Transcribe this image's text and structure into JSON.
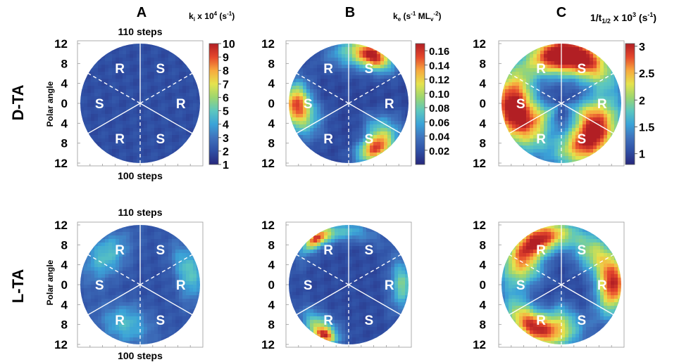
{
  "chart_data": {
    "type": "heatmap",
    "panel_labels": {
      "A": "A",
      "B": "B",
      "C": "C"
    },
    "row_labels": [
      "D-TA",
      "L-TA"
    ],
    "ylabel": "Polar angle",
    "y_tick_labels": [
      "12",
      "8",
      "4",
      "0",
      "4",
      "8",
      "12"
    ],
    "step_labels": {
      "top": "110 steps",
      "bottom": "100 steps"
    },
    "sector_labels": [
      "R",
      "S",
      "R",
      "S",
      "R",
      "S"
    ],
    "colorbars": [
      {
        "label_main": "k",
        "label_sub": "i",
        "label_rest": " x 10",
        "label_sup": "4",
        "label_unit": " (s",
        "label_unit_sup": "-1",
        "label_end": ")",
        "range": [
          1,
          10
        ],
        "ticks": [
          "10",
          "9",
          "8",
          "7",
          "6",
          "5",
          "4",
          "3",
          "2",
          "1"
        ]
      },
      {
        "label_main": "k",
        "label_sub": "e",
        "label_rest": " (s",
        "label_sup": "-1",
        "label_unit": " ML",
        "label_unit_sub": "v",
        "label_unit_sup": "-2",
        "label_end": ")",
        "range": [
          0.0,
          0.17
        ],
        "ticks": [
          "0.16",
          "0.14",
          "0.12",
          "0.10",
          "0.08",
          "0.06",
          "0.04",
          "0.02"
        ]
      },
      {
        "label_main": "1/t",
        "label_sub": "1/2",
        "label_rest": " x 10",
        "label_sup": "3",
        "label_unit": " (s",
        "label_unit_sup": "-1",
        "label_end": ")",
        "range": [
          0.8,
          3.05
        ],
        "ticks": [
          "3",
          "2.5",
          "2",
          "1.5",
          "1"
        ]
      }
    ],
    "colormap": [
      "#27287c",
      "#2f4fa4",
      "#3f72bd",
      "#3ba3d8",
      "#5cc7bf",
      "#9cd670",
      "#e5e34d",
      "#f7a93e",
      "#e5472c",
      "#b21f24"
    ],
    "maps": [
      {
        "row": "D-TA",
        "column": "A",
        "background_level": 0.11,
        "hotspots": []
      },
      {
        "row": "D-TA",
        "column": "B",
        "background_level": 0.09,
        "hotspots": [
          {
            "angle_deg": 62,
            "radius": 0.9,
            "level": 0.86,
            "spread_deg": 14,
            "spread_r": 0.14
          },
          {
            "angle_deg": 85,
            "radius": 0.85,
            "level": 0.42,
            "spread_deg": 22,
            "spread_r": 0.2
          },
          {
            "angle_deg": 180,
            "radius": 0.88,
            "level": 0.78,
            "spread_deg": 16,
            "spread_r": 0.16
          },
          {
            "angle_deg": 200,
            "radius": 0.75,
            "level": 0.38,
            "spread_deg": 18,
            "spread_r": 0.22
          },
          {
            "angle_deg": -60,
            "radius": 0.88,
            "level": 0.82,
            "spread_deg": 14,
            "spread_r": 0.14
          },
          {
            "angle_deg": -40,
            "radius": 0.7,
            "level": 0.42,
            "spread_deg": 16,
            "spread_r": 0.22
          }
        ]
      },
      {
        "row": "D-TA",
        "column": "C",
        "background_level": 0.12,
        "hotspots": [
          {
            "angle_deg": 65,
            "radius": 0.82,
            "level": 0.96,
            "spread_deg": 28,
            "spread_r": 0.22
          },
          {
            "angle_deg": 100,
            "radius": 0.8,
            "level": 0.72,
            "spread_deg": 22,
            "spread_r": 0.22
          },
          {
            "angle_deg": 180,
            "radius": 0.82,
            "level": 0.96,
            "spread_deg": 28,
            "spread_r": 0.24
          },
          {
            "angle_deg": 215,
            "radius": 0.55,
            "level": 0.62,
            "spread_deg": 24,
            "spread_r": 0.3
          },
          {
            "angle_deg": -55,
            "radius": 0.78,
            "level": 0.96,
            "spread_deg": 26,
            "spread_r": 0.24
          },
          {
            "angle_deg": -20,
            "radius": 0.55,
            "level": 0.62,
            "spread_deg": 22,
            "spread_r": 0.26
          }
        ]
      },
      {
        "row": "L-TA",
        "column": "A",
        "background_level": 0.12,
        "hotspots": [
          {
            "angle_deg": 140,
            "radius": 0.75,
            "level": 0.42,
            "spread_deg": 24,
            "spread_r": 0.22
          },
          {
            "angle_deg": 15,
            "radius": 0.85,
            "level": 0.45,
            "spread_deg": 22,
            "spread_r": 0.16
          },
          {
            "angle_deg": -110,
            "radius": 0.7,
            "level": 0.4,
            "spread_deg": 24,
            "spread_r": 0.24
          }
        ]
      },
      {
        "row": "L-TA",
        "column": "B",
        "background_level": 0.1,
        "hotspots": [
          {
            "angle_deg": 105,
            "radius": 0.9,
            "level": 0.42,
            "spread_deg": 30,
            "spread_r": 0.12
          },
          {
            "angle_deg": 125,
            "radius": 0.95,
            "level": 0.72,
            "spread_deg": 10,
            "spread_r": 0.08
          },
          {
            "angle_deg": 0,
            "radius": 0.9,
            "level": 0.5,
            "spread_deg": 18,
            "spread_r": 0.14
          },
          {
            "angle_deg": -125,
            "radius": 0.85,
            "level": 0.55,
            "spread_deg": 16,
            "spread_r": 0.14
          },
          {
            "angle_deg": -115,
            "radius": 0.95,
            "level": 0.7,
            "spread_deg": 8,
            "spread_r": 0.08
          }
        ]
      },
      {
        "row": "L-TA",
        "column": "C",
        "background_level": 0.1,
        "hotspots": [
          {
            "angle_deg": 115,
            "radius": 0.85,
            "level": 0.95,
            "spread_deg": 26,
            "spread_r": 0.18
          },
          {
            "angle_deg": 155,
            "radius": 0.7,
            "level": 0.55,
            "spread_deg": 22,
            "spread_r": 0.24
          },
          {
            "angle_deg": 45,
            "radius": 0.75,
            "level": 0.5,
            "spread_deg": 20,
            "spread_r": 0.22
          },
          {
            "angle_deg": 0,
            "radius": 0.86,
            "level": 0.96,
            "spread_deg": 22,
            "spread_r": 0.18
          },
          {
            "angle_deg": -125,
            "radius": 0.85,
            "level": 0.92,
            "spread_deg": 24,
            "spread_r": 0.18
          },
          {
            "angle_deg": -90,
            "radius": 0.65,
            "level": 0.5,
            "spread_deg": 20,
            "spread_r": 0.24
          }
        ]
      }
    ]
  }
}
